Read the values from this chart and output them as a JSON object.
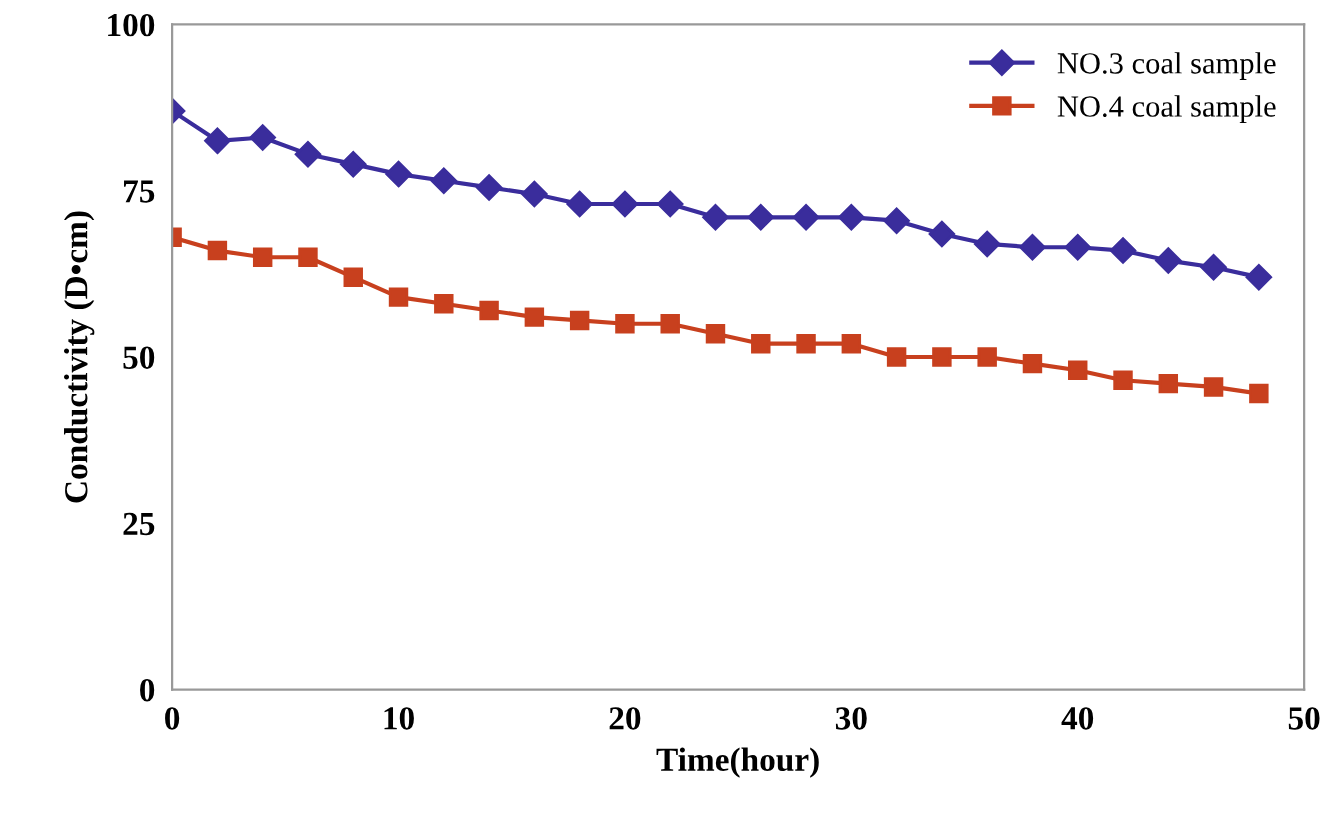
{
  "chart_data": {
    "type": "line",
    "xlabel": "Time(hour)",
    "ylabel": "Conductivity (D•cm)",
    "x": [
      0,
      2,
      4,
      6,
      8,
      10,
      12,
      14,
      16,
      18,
      20,
      22,
      24,
      26,
      28,
      30,
      32,
      34,
      36,
      38,
      40,
      42,
      44,
      46,
      48
    ],
    "series": [
      {
        "name": "NO.3 coal sample",
        "color": "#3a2d9c",
        "marker": "diamond",
        "values": [
          87,
          82.5,
          83,
          80.5,
          79,
          77.5,
          76.5,
          75.5,
          74.5,
          73,
          73,
          73,
          71,
          71,
          71,
          71,
          70.5,
          68.5,
          67,
          66.5,
          66.5,
          66,
          64.5,
          63.5,
          62
        ]
      },
      {
        "name": "NO.4 coal sample",
        "color": "#c8401e",
        "marker": "square",
        "values": [
          68,
          66,
          65,
          65,
          62,
          59,
          58,
          57,
          56,
          55.5,
          55,
          55,
          53.5,
          52,
          52,
          52,
          50,
          50,
          50,
          49,
          48,
          46.5,
          46,
          45.5,
          44.5
        ]
      }
    ],
    "xlim": [
      0,
      50
    ],
    "xticks": [
      0,
      10,
      20,
      30,
      40,
      50
    ],
    "ylim": [
      0,
      100
    ],
    "yticks": [
      0,
      25,
      50,
      75,
      100
    ],
    "grid": false,
    "legend": "top right",
    "line_style": "solid"
  }
}
